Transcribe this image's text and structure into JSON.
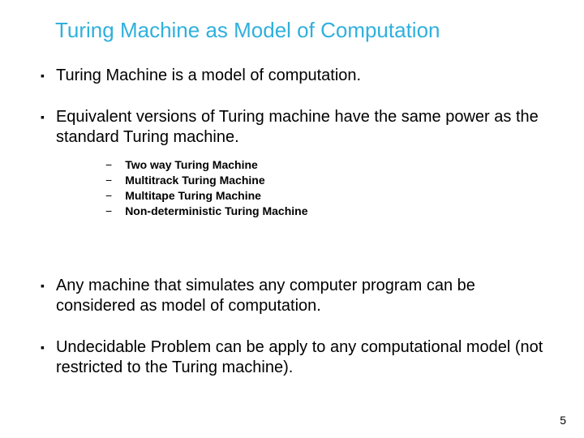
{
  "title": "Turing Machine as Model of Computation",
  "bullets": {
    "b1": "Turing Machine is a model of computation.",
    "b2": "Equivalent versions of Turing machine have the same power as the standard Turing machine.",
    "b3": "Any machine that simulates any computer program can be considered as model of computation.",
    "b4": "Undecidable Problem can be apply to any computational model (not restricted to the Turing machine)."
  },
  "sublist": {
    "s1": "Two way Turing Machine",
    "s2": "Multitrack Turing Machine",
    "s3": "Multitape Turing Machine",
    "s4": "Non-deterministic Turing Machine"
  },
  "markers": {
    "square": "▪",
    "dash": "−"
  },
  "pageNumber": "5",
  "colors": {
    "title": "#2fb0dd",
    "text": "#000000",
    "background": "#ffffff"
  }
}
